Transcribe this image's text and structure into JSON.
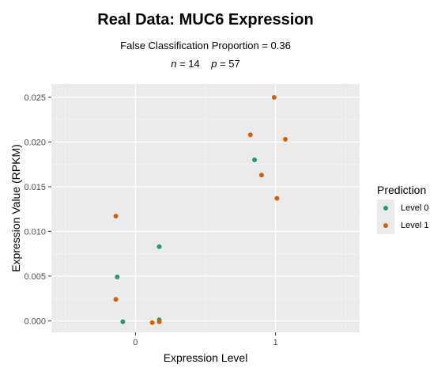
{
  "chart_data": {
    "type": "scatter",
    "title": "Real Data: MUC6 Expression",
    "subtitle_line1": "False Classification Proportion = 0.36",
    "subtitle_line2": {
      "n_label": "n",
      "n_value": " = 14",
      "p_label": "p",
      "p_value": " = 57"
    },
    "xlabel": "Expression Level",
    "ylabel": "Expression Value (RPKM)",
    "xlim": [
      -0.6,
      1.6
    ],
    "ylim": [
      -0.0013,
      0.0265
    ],
    "x_ticks": [
      0,
      1
    ],
    "x_tick_labels": [
      "0",
      "1"
    ],
    "y_ticks": [
      0,
      0.005,
      0.01,
      0.015,
      0.02,
      0.025
    ],
    "y_tick_labels": [
      "0.000",
      "0.005",
      "0.010",
      "0.015",
      "0.020",
      "0.025"
    ],
    "grid": true,
    "legend": {
      "title": "Prediction",
      "position": "right"
    },
    "series": [
      {
        "name": "Level 0",
        "color": "#1b9e77",
        "points": [
          {
            "x": -0.13,
            "y": 0.0049
          },
          {
            "x": -0.09,
            "y": -0.0001
          },
          {
            "x": 0.17,
            "y": 0.0083
          },
          {
            "x": 0.17,
            "y": 0.0001
          },
          {
            "x": 0.85,
            "y": 0.018
          }
        ]
      },
      {
        "name": "Level 1",
        "color": "#d95f02",
        "points": [
          {
            "x": -0.14,
            "y": 0.0117
          },
          {
            "x": -0.14,
            "y": 0.0024
          },
          {
            "x": 0.12,
            "y": -0.0002
          },
          {
            "x": 0.17,
            "y": -0.0001
          },
          {
            "x": 0.82,
            "y": 0.0208
          },
          {
            "x": 0.9,
            "y": 0.0163
          },
          {
            "x": 0.99,
            "y": 0.025
          },
          {
            "x": 1.01,
            "y": 0.0137
          },
          {
            "x": 1.07,
            "y": 0.0203
          }
        ]
      }
    ]
  }
}
